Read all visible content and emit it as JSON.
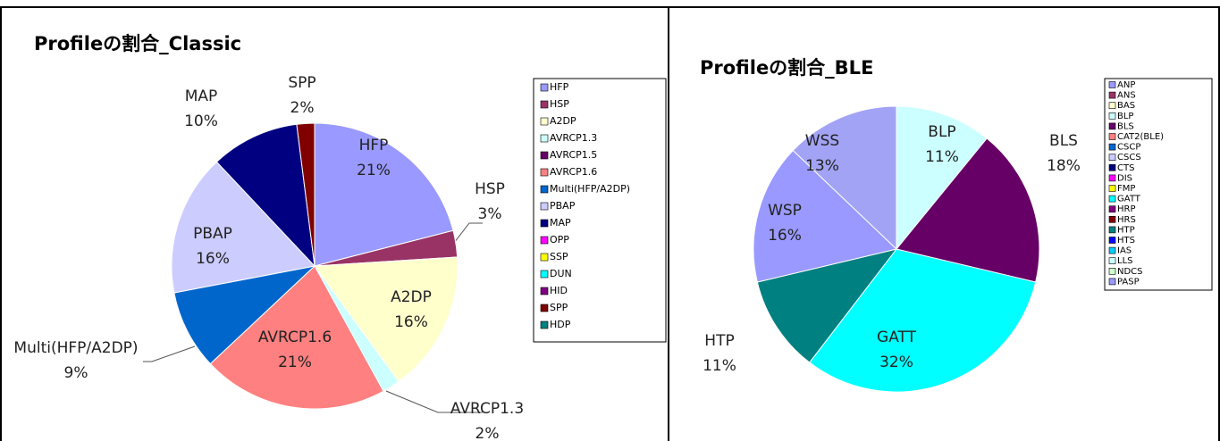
{
  "chart_data": [
    {
      "type": "pie",
      "title": "Profileの割合_Classic",
      "categories": [
        "HFP",
        "HSP",
        "A2DP",
        "AVRCP1.3",
        "AVRCP1.5",
        "AVRCP1.6",
        "Multi(HFP/A2DP)",
        "PBAP",
        "MAP",
        "OPP",
        "SSP",
        "DUN",
        "HID",
        "SPP",
        "HDP"
      ],
      "values": [
        21,
        3,
        16,
        2,
        0,
        21,
        9,
        16,
        10,
        0,
        0,
        0,
        0,
        2,
        0
      ],
      "value_labels": [
        "21%",
        "3%",
        "16%",
        "2%",
        null,
        "21%",
        "9%",
        "16%",
        "10%",
        null,
        null,
        null,
        null,
        "2%",
        null
      ],
      "colors": [
        "#9999ff",
        "#993366",
        "#ffffcc",
        "#ccffff",
        "#660066",
        "#ff8080",
        "#0066cc",
        "#ccccff",
        "#000080",
        "#ff00ff",
        "#ffff00",
        "#00ffff",
        "#800080",
        "#800000",
        "#008080"
      ],
      "legend": "right"
    },
    {
      "type": "pie",
      "title": "Profileの割合_BLE",
      "categories": [
        "ANP",
        "ANS",
        "BAS",
        "BLP",
        "BLS",
        "CAT2(BLE)",
        "CSCP",
        "CSCS",
        "CTS",
        "DIS",
        "FMP",
        "GATT",
        "HRP",
        "HRS",
        "HTP",
        "HTS",
        "IAS",
        "LLS",
        "NDCS",
        "PASP",
        "WSP",
        "WSS"
      ],
      "values": [
        0,
        0,
        0,
        11,
        18,
        0,
        0,
        0,
        0,
        0,
        0,
        32,
        0,
        0,
        11,
        0,
        0,
        0,
        0,
        0,
        16,
        13
      ],
      "value_labels": [
        null,
        null,
        null,
        "11%",
        "18%",
        null,
        null,
        null,
        null,
        null,
        null,
        "32%",
        null,
        null,
        "11%",
        null,
        null,
        null,
        null,
        null,
        "16%",
        "13%"
      ],
      "colors": [
        "#9999ff",
        "#993366",
        "#ffffcc",
        "#ccffff",
        "#660066",
        "#ff8080",
        "#0066cc",
        "#ccccff",
        "#000080",
        "#ff00ff",
        "#ffff00",
        "#00ffff",
        "#800080",
        "#800000",
        "#008080",
        "#0000ff",
        "#00ccff",
        "#ccffff",
        "#ccffcc",
        "#9999ff",
        "#9999ff",
        "#a3a3f5"
      ],
      "legend": "right"
    }
  ]
}
